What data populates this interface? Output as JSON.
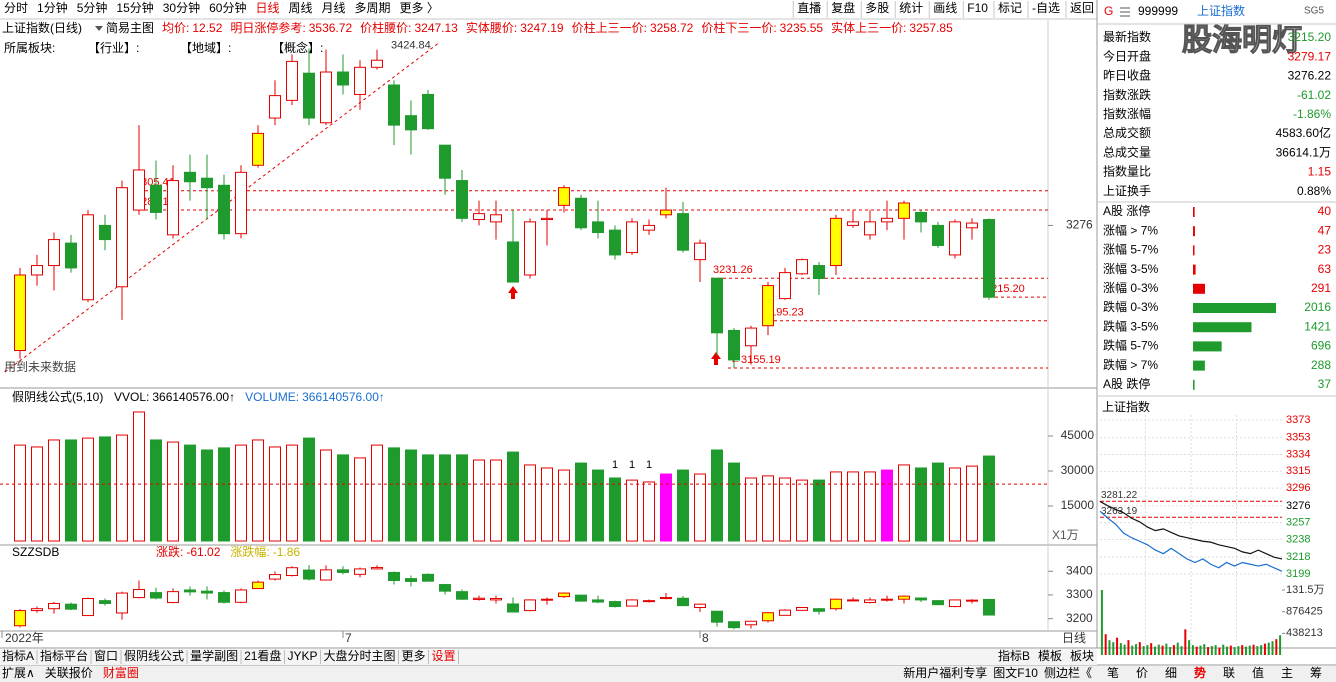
{
  "toolbar": {
    "periods": [
      "分时",
      "1分钟",
      "5分钟",
      "15分钟",
      "30分钟",
      "60分钟",
      "日线",
      "周线",
      "月线",
      "多周期",
      "更多 〉"
    ],
    "active": 6,
    "buttons": [
      "直播",
      "复盘",
      "多股",
      "统计",
      "画线",
      "F10",
      "标记",
      "-自选",
      "返回"
    ]
  },
  "info_bar": {
    "name": "上证指数(日线)",
    "template": "简易主图",
    "items": [
      {
        "label": "均价:",
        "value": "12.52"
      },
      {
        "label": "明日涨停参考:",
        "value": "3536.72"
      },
      {
        "label": "价柱腰价:",
        "value": "3247.13"
      },
      {
        "label": "实体腰价:",
        "value": "3247.19"
      },
      {
        "label": "价柱上三一价:",
        "value": "3258.72"
      },
      {
        "label": "价柱下三一价:",
        "value": "3235.55"
      },
      {
        "label": "实体上三一价:",
        "value": "3257.85"
      }
    ]
  },
  "sector_bar": [
    "所属板块:",
    "【行业】:",
    "【地域】:",
    "【概念】:"
  ],
  "main_chart": {
    "ylim": [
      3145,
      3445
    ],
    "yticks": [
      3276
    ],
    "note": "用到未来数据",
    "highlight": [
      0,
      14,
      32,
      38,
      44,
      48,
      52
    ],
    "candles": [
      [
        3170,
        3240,
        3163,
        3234
      ],
      [
        3234,
        3251,
        3225,
        3242
      ],
      [
        3242,
        3270,
        3221,
        3264
      ],
      [
        3261,
        3268,
        3236,
        3240
      ],
      [
        3213,
        3289,
        3211,
        3285
      ],
      [
        3276,
        3285,
        3255,
        3264
      ],
      [
        3224,
        3314,
        3196,
        3308
      ],
      [
        3289,
        3361,
        3285,
        3323
      ],
      [
        3310,
        3331,
        3281,
        3287
      ],
      [
        3268,
        3327,
        3265,
        3314
      ],
      [
        3321,
        3336,
        3297,
        3313
      ],
      [
        3316,
        3336,
        3281,
        3308
      ],
      [
        3310,
        3319,
        3264,
        3269
      ],
      [
        3269,
        3327,
        3265,
        3321
      ],
      [
        3327,
        3361,
        3325,
        3354
      ],
      [
        3367,
        3399,
        3361,
        3386
      ],
      [
        3382,
        3421,
        3378,
        3415
      ],
      [
        3405,
        3426,
        3361,
        3367
      ],
      [
        3363,
        3425,
        3361,
        3406
      ],
      [
        3406,
        3421,
        3387,
        3395
      ],
      [
        3387,
        3416,
        3374,
        3410
      ],
      [
        3410,
        3424.84,
        3408,
        3416
      ],
      [
        3395,
        3399,
        3344,
        3361
      ],
      [
        3369,
        3382,
        3336,
        3357
      ],
      [
        3387,
        3391,
        3357,
        3358
      ],
      [
        3344,
        3344,
        3302,
        3316
      ],
      [
        3314,
        3323,
        3279,
        3282
      ],
      [
        3281,
        3297,
        3276,
        3286
      ],
      [
        3279,
        3297,
        3264,
        3285
      ],
      [
        3262,
        3289,
        3228,
        3228
      ],
      [
        3234,
        3282,
        3231,
        3279
      ],
      [
        3281,
        3289,
        3259,
        3282
      ],
      [
        3293,
        3310,
        3287,
        3308
      ],
      [
        3299,
        3302,
        3272,
        3274
      ],
      [
        3279,
        3297,
        3265,
        3270
      ],
      [
        3272,
        3276,
        3247,
        3251
      ],
      [
        3253,
        3282,
        3251,
        3279
      ],
      [
        3272,
        3281,
        3268,
        3276
      ],
      [
        3285,
        3308,
        3282,
        3289
      ],
      [
        3286,
        3296,
        3253,
        3255
      ],
      [
        3247,
        3264,
        3228,
        3261
      ],
      [
        3231.26,
        3231.26,
        3166,
        3185
      ],
      [
        3187,
        3189,
        3155.19,
        3162
      ],
      [
        3174,
        3191,
        3158,
        3189
      ],
      [
        3191,
        3228,
        3183,
        3225
      ],
      [
        3214,
        3240,
        3213,
        3236
      ],
      [
        3235,
        3248,
        3234,
        3247
      ],
      [
        3242,
        3245,
        3217,
        3231
      ],
      [
        3242,
        3285,
        3234,
        3282
      ],
      [
        3276,
        3289,
        3274,
        3279
      ],
      [
        3268,
        3289,
        3264,
        3279
      ],
      [
        3279,
        3297,
        3272,
        3282
      ],
      [
        3282,
        3297,
        3264,
        3295
      ],
      [
        3287,
        3289,
        3270,
        3279
      ],
      [
        3276,
        3279,
        3257,
        3259
      ],
      [
        3251,
        3281,
        3248,
        3279
      ],
      [
        3274,
        3282,
        3264,
        3278
      ],
      [
        3281,
        3282,
        3213,
        3215.2
      ]
    ],
    "annotations": [
      {
        "value": 3424.84,
        "label": "3424.84",
        "index": 21,
        "line": false
      },
      {
        "value": 3305.41,
        "label": "3305.41",
        "index": 7,
        "line": true
      },
      {
        "value": 3289.1,
        "label": "3289.10",
        "index": 7,
        "line": true
      },
      {
        "value": 3231.26,
        "label": "3231.26",
        "index": 41,
        "line": true
      },
      {
        "value": 3195.23,
        "label": "3195.23",
        "index": 44,
        "line": true
      },
      {
        "value": 3215.2,
        "label": "3215.20",
        "index": 57,
        "line": true
      },
      {
        "value": 3155.19,
        "label": "←3155.19",
        "index": 42,
        "line": true
      }
    ]
  },
  "volume_chart": {
    "name": "假阴线公式(5,10)",
    "items": [
      {
        "label": "VVOL:",
        "value": "366140576.00↑",
        "color": "#000000"
      },
      {
        "label": "VOLUME:",
        "value": "366140576.00↑",
        "color": "#1a6fd0"
      }
    ],
    "unit": "X1万",
    "ylim": [
      0,
      56000
    ],
    "yticks": [
      15000,
      30000,
      45000
    ],
    "ma_level": 24400,
    "highlight": [
      38,
      51
    ],
    "highlight_color": "#ff00ff",
    "markers": [
      {
        "index": 35,
        "text": "1"
      },
      {
        "index": 36,
        "text": "1"
      },
      {
        "index": 37,
        "text": "1"
      }
    ],
    "values": [
      41100,
      40300,
      43300,
      43300,
      44100,
      44600,
      45400,
      55300,
      43300,
      42400,
      41100,
      39000,
      39900,
      41100,
      43300,
      40300,
      41100,
      44100,
      39000,
      36900,
      35600,
      41100,
      39900,
      39000,
      36900,
      36900,
      36900,
      34700,
      34700,
      38100,
      32600,
      31300,
      30400,
      33400,
      30400,
      27000,
      26100,
      25300,
      28700,
      30400,
      28700,
      39000,
      33400,
      27000,
      27900,
      27000,
      26100,
      26100,
      29600,
      29600,
      29600,
      30400,
      32600,
      31300,
      33400,
      31300,
      32100,
      36400
    ]
  },
  "sub_chart": {
    "name": "SZZSDB",
    "items": [
      {
        "label": "涨跌:",
        "value": "-61.02",
        "color": "#e60000"
      },
      {
        "label": "涨跌幅:",
        "value": "-1.86",
        "color": "#c8b400"
      }
    ],
    "ylim": [
      3152,
      3456
    ],
    "yticks": [
      3200,
      3300,
      3400
    ]
  },
  "date_axis": {
    "labels": [
      {
        "index": 0,
        "label": "2022年"
      },
      {
        "index": 19,
        "label": "7"
      },
      {
        "index": 40,
        "label": "8"
      }
    ],
    "period": "日线"
  },
  "bottom_tabs": {
    "left": [
      "指标A",
      "指标平台",
      "窗口",
      "假阴线公式",
      "量学副图",
      "21看盘",
      "JYKP",
      "大盘分时主图",
      "更多",
      "设置"
    ],
    "right": [
      "指标B",
      "模板",
      "板块"
    ]
  },
  "footer": {
    "left": [
      "扩展∧",
      "关联报价",
      "财富圈"
    ],
    "right": [
      "新用户福利专享",
      "图文F10",
      "侧边栏《"
    ],
    "side_tabs": [
      "笔",
      "价",
      "细",
      "势",
      "联",
      "值",
      "主",
      "筹"
    ],
    "active_side": 3
  },
  "quote_panel": {
    "prefix": "G",
    "code": "999999",
    "name": "上证指数",
    "tag": "SG5",
    "watermark": "股海明灯",
    "rows": [
      {
        "label": "最新指数",
        "value": "3215.20",
        "color": "#1f9a2d"
      },
      {
        "label": "今日开盘",
        "value": "3279.17",
        "color": "#e60000"
      },
      {
        "label": "昨日收盘",
        "value": "3276.22",
        "color": "#000000"
      },
      {
        "label": "指数涨跌",
        "value": "-61.02",
        "color": "#1f9a2d"
      },
      {
        "label": "指数涨幅",
        "value": "-1.86%",
        "color": "#1f9a2d"
      },
      {
        "label": "总成交额",
        "value": "4583.60亿",
        "color": "#000000"
      },
      {
        "label": "总成交量",
        "value": "36614.1万",
        "color": "#000000"
      },
      {
        "label": "指数量比",
        "value": "1.15",
        "color": "#e60000"
      },
      {
        "label": "上证换手",
        "value": "0.88%",
        "color": "#000000"
      }
    ],
    "breadth": [
      {
        "label": "A股 涨停",
        "count": 40,
        "color": "#e60000"
      },
      {
        "label": "涨幅 > 7%",
        "count": 47,
        "color": "#e60000"
      },
      {
        "label": "涨幅 5-7%",
        "count": 23,
        "color": "#e60000"
      },
      {
        "label": "涨幅 3-5%",
        "count": 63,
        "color": "#e60000"
      },
      {
        "label": "涨幅 0-3%",
        "count": 291,
        "color": "#e60000"
      },
      {
        "label": "跌幅 0-3%",
        "count": 2016,
        "color": "#1f9a2d"
      },
      {
        "label": "跌幅 3-5%",
        "count": 1421,
        "color": "#1f9a2d"
      },
      {
        "label": "跌幅 5-7%",
        "count": 696,
        "color": "#1f9a2d"
      },
      {
        "label": "跌幅 > 7%",
        "count": 288,
        "color": "#1f9a2d"
      },
      {
        "label": "A股 跌停",
        "count": 37,
        "color": "#1f9a2d"
      }
    ]
  },
  "mini_chart": {
    "title": "上证指数",
    "prev_close": 3276.22,
    "ylim": [
      3199,
      3373
    ],
    "yticks": [
      3373,
      3353,
      3334,
      3315,
      3296,
      3276,
      3257,
      3238,
      3218,
      3199
    ],
    "ref_lines": [
      3281.22,
      3263.19
    ],
    "price": [
      3281,
      3276,
      3272,
      3268,
      3262,
      3258,
      3252,
      3248,
      3250,
      3246,
      3242,
      3240,
      3238,
      3236,
      3235,
      3232,
      3230,
      3228,
      3224,
      3222,
      3226,
      3222,
      3218,
      3216
    ],
    "avg": [
      3270,
      3262,
      3255,
      3245,
      3240,
      3236,
      3232,
      3226,
      3222,
      3228,
      3222,
      3216,
      3212,
      3216,
      3210,
      3206,
      3212,
      3208,
      3212,
      3210,
      3208,
      3210,
      3206,
      3202
    ],
    "vol_ylim": [
      0,
      1315000
    ],
    "vol_yticks": [
      {
        "value": 1315000,
        "label": "131.5万"
      },
      876425,
      438213
    ],
    "volume": [
      1315000,
      420000,
      300000,
      260000,
      350000,
      240000,
      210000,
      300000,
      190000,
      220000,
      260000,
      180000,
      200000,
      240000,
      170000,
      210000,
      190000,
      230000,
      160000,
      200000,
      250000,
      180000,
      520000,
      300000,
      200000,
      170000,
      190000,
      220000,
      160000,
      180000,
      200000,
      150000,
      210000,
      170000,
      190000,
      160000,
      180000,
      200000,
      170000,
      190000,
      210000,
      180000,
      200000,
      230000,
      250000,
      280000,
      320000,
      400000
    ]
  }
}
